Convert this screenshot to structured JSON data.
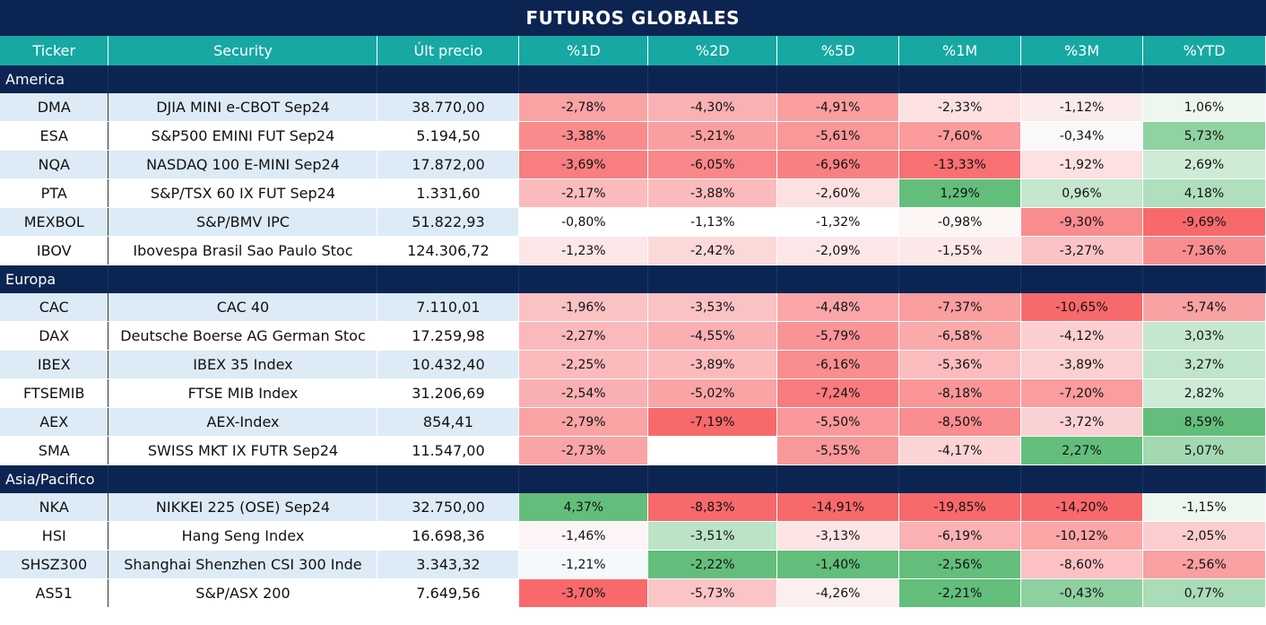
{
  "title": "FUTUROS GLOBALES",
  "columns": [
    "Ticker",
    "Security",
    "Últ precio",
    "%1D",
    "%2D",
    "%5D",
    "%1M",
    "%3M",
    "%YTD"
  ],
  "colors": {
    "header_bg": "#17a8a3",
    "title_bg": "#0c2451",
    "alt_row": "#ddebf7",
    "neg": "#f8696b",
    "pos": "#63be7b"
  },
  "groups": [
    {
      "name": "America",
      "rows": [
        {
          "ticker": "DMA",
          "security": "DJIA MINI e-CBOT  Sep24",
          "price": "38.770,00",
          "vals": [
            "-2,78%",
            "-4,30%",
            "-4,91%",
            "-2,33%",
            "-1,12%",
            "1,06%"
          ],
          "colors": [
            "#f9a3a5",
            "#fab1b3",
            "#fa9ea0",
            "#fde1e2",
            "#fcebec",
            "#edf7f0"
          ]
        },
        {
          "ticker": "ESA",
          "security": "S&P500 EMINI FUT  Sep24",
          "price": "5.194,50",
          "vals": [
            "-3,38%",
            "-5,21%",
            "-5,61%",
            "-7,60%",
            "-0,34%",
            "5,73%"
          ],
          "colors": [
            "#f98b8d",
            "#fa9fa1",
            "#f99799",
            "#fb9b9d",
            "#fbf8fa",
            "#90d2a2"
          ]
        },
        {
          "ticker": "NQA",
          "security": "NASDAQ 100 E-MINI Sep24",
          "price": "17.872,00",
          "vals": [
            "-3,69%",
            "-6,05%",
            "-6,96%",
            "-13,33%",
            "-1,92%",
            "2,69%"
          ],
          "colors": [
            "#f87e80",
            "#f98789",
            "#f98082",
            "#f87072",
            "#fde0e1",
            "#cfebd6"
          ]
        },
        {
          "ticker": "PTA",
          "security": "S&P/TSX 60 IX FUT Sep24",
          "price": "1.331,60",
          "vals": [
            "-2,17%",
            "-3,88%",
            "-2,60%",
            "1,29%",
            "0,96%",
            "4,18%"
          ],
          "colors": [
            "#fbbbbd",
            "#fbbbbd",
            "#fde0e1",
            "#63be7b",
            "#c5e7ce",
            "#afdfbc"
          ]
        },
        {
          "ticker": "MEXBOL",
          "security": "S&P/BMV IPC",
          "price": "51.822,93",
          "vals": [
            "-0,80%",
            "-1,13%",
            "-1,32%",
            "-0,98%",
            "-9,30%",
            "-9,69%"
          ],
          "colors": [
            "#ffffff",
            "#ffffff",
            "#ffffff",
            "#fef6f6",
            "#f98c8e",
            "#f8696b"
          ]
        },
        {
          "ticker": "IBOV",
          "security": "Ibovespa Brasil Sao Paulo Stoc",
          "price": "124.306,72",
          "vals": [
            "-1,23%",
            "-2,42%",
            "-2,09%",
            "-1,55%",
            "-3,27%",
            "-7,36%"
          ],
          "colors": [
            "#fde6e7",
            "#fdd8d9",
            "#fde6e7",
            "#fde8e9",
            "#fbc3c5",
            "#f98e90"
          ]
        }
      ]
    },
    {
      "name": "Europa",
      "rows": [
        {
          "ticker": "CAC",
          "security": "CAC 40",
          "price": "7.110,01",
          "vals": [
            "-1,96%",
            "-3,53%",
            "-4,48%",
            "-7,37%",
            "-10,65%",
            "-5,74%"
          ],
          "colors": [
            "#fbc2c4",
            "#fbc2c4",
            "#faa6a8",
            "#fa9ea0",
            "#f8696b",
            "#f9a2a4"
          ]
        },
        {
          "ticker": "DAX",
          "security": "Deutsche Boerse AG German Stoc",
          "price": "17.259,98",
          "vals": [
            "-2,27%",
            "-4,55%",
            "-5,79%",
            "-6,58%",
            "-4,12%",
            "3,03%"
          ],
          "colors": [
            "#fbb9bb",
            "#fab0b2",
            "#f99496",
            "#fbaaac",
            "#fbcfd0",
            "#c6e7cf"
          ]
        },
        {
          "ticker": "IBEX",
          "security": "IBEX 35 Index",
          "price": "10.432,40",
          "vals": [
            "-2,25%",
            "-3,89%",
            "-6,16%",
            "-5,36%",
            "-3,89%",
            "3,27%"
          ],
          "colors": [
            "#fbbabc",
            "#fbbbbd",
            "#f98d8f",
            "#fbbcbe",
            "#fbd0d1",
            "#c1e5cb"
          ]
        },
        {
          "ticker": "FTSEMIB",
          "security": "FTSE MIB Index",
          "price": "31.206,69",
          "vals": [
            "-2,54%",
            "-5,02%",
            "-7,24%",
            "-8,18%",
            "-7,20%",
            "2,82%"
          ],
          "colors": [
            "#fab0b2",
            "#faa4a6",
            "#f87b7d",
            "#fa9698",
            "#fb9c9e",
            "#cdebd5"
          ]
        },
        {
          "ticker": "AEX",
          "security": "AEX-Index",
          "price": "854,41",
          "vals": [
            "-2,79%",
            "-7,19%",
            "-5,50%",
            "-8,50%",
            "-3,72%",
            "8,59%"
          ],
          "colors": [
            "#f9a3a5",
            "#f8696b",
            "#f9999b",
            "#f98d8f",
            "#fbd2d3",
            "#63be7b"
          ]
        },
        {
          "ticker": "SMA",
          "security": "SWISS MKT IX FUTR Sep24",
          "price": "11.547,00",
          "vals": [
            "-2,73%",
            "",
            "-5,55%",
            "-4,17%",
            "2,27%",
            "5,07%"
          ],
          "colors": [
            "#f9a5a7",
            "#ffffff",
            "#f9989a",
            "#fcd4d5",
            "#63be7b",
            "#a2d9b1"
          ]
        }
      ]
    },
    {
      "name": "Asia/Pacifico",
      "rows": [
        {
          "ticker": "NKA",
          "security": "NIKKEI 225  (OSE) Sep24",
          "price": "32.750,00",
          "vals": [
            "4,37%",
            "-8,83%",
            "-14,91%",
            "-19,85%",
            "-14,20%",
            "-1,15%"
          ],
          "colors": [
            "#63be7b",
            "#f8696b",
            "#f8696b",
            "#f8696b",
            "#f8696b",
            "#edf7f0"
          ]
        },
        {
          "ticker": "HSI",
          "security": "Hang Seng Index",
          "price": "16.698,36",
          "vals": [
            "-1,46%",
            "-3,51%",
            "-3,13%",
            "-6,19%",
            "-10,12%",
            "-2,05%"
          ],
          "colors": [
            "#fcf4f6",
            "#bde3c7",
            "#fce4e5",
            "#fbb1b3",
            "#fca5a7",
            "#fbcdce"
          ]
        },
        {
          "ticker": "SHSZ300",
          "security": "Shanghai Shenzhen CSI 300 Inde",
          "price": "3.343,32",
          "vals": [
            "-1,21%",
            "-2,22%",
            "-1,40%",
            "-2,56%",
            "-8,60%",
            "-2,56%"
          ],
          "colors": [
            "#f4f9fb",
            "#63be7b",
            "#63be7b",
            "#63be7b",
            "#fcc1c3",
            "#f9a0a2"
          ]
        },
        {
          "ticker": "AS51",
          "security": "S&P/ASX 200",
          "price": "7.649,56",
          "vals": [
            "-3,70%",
            "-5,73%",
            "-4,26%",
            "-2,21%",
            "-0,43%",
            "0,77%"
          ],
          "colors": [
            "#f8696b",
            "#fbc5c6",
            "#fdeff0",
            "#63be7b",
            "#8ed0a0",
            "#a9dcb7"
          ]
        }
      ]
    }
  ]
}
